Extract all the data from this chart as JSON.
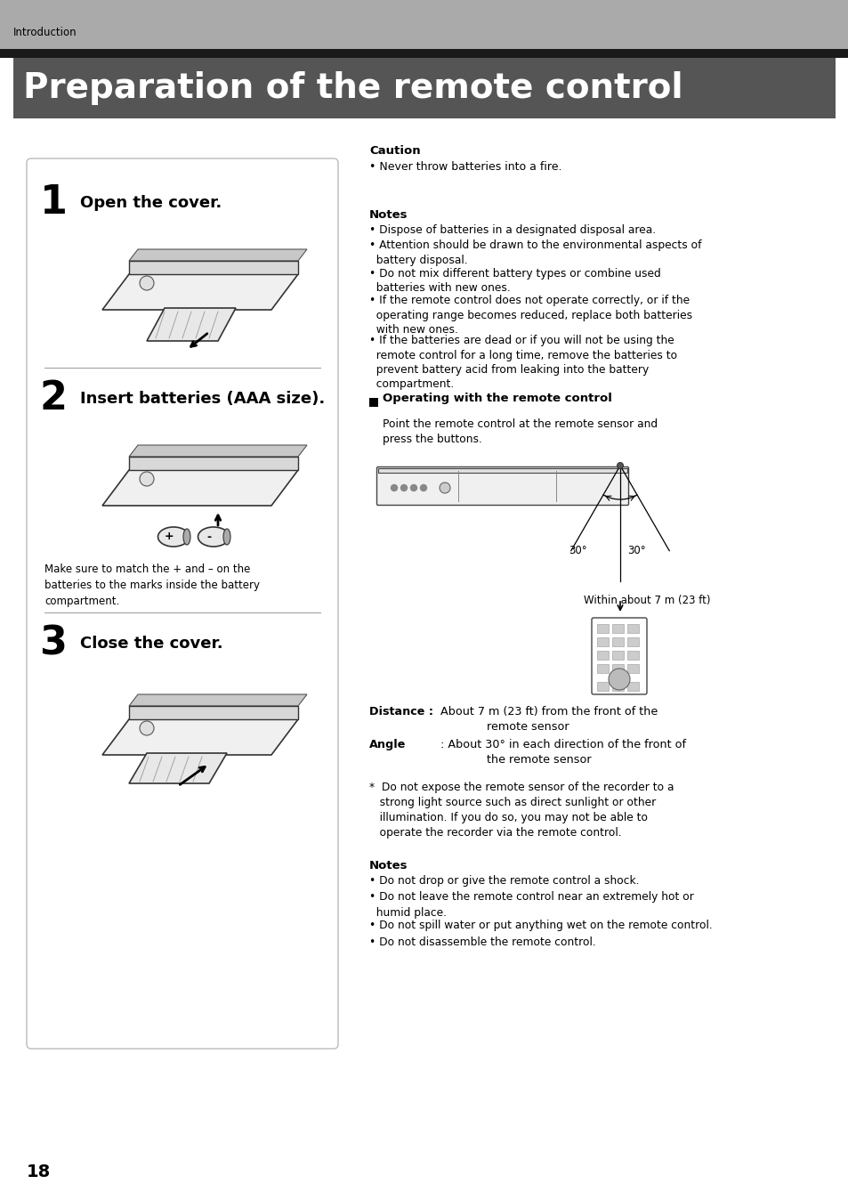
{
  "page_title": "Preparation of the remote control",
  "section_header": "Introduction",
  "bg_color": "#ffffff",
  "header_bar_color": "#aaaaaa",
  "title_bar_color": "#555555",
  "title_text_color": "#ffffff",
  "header_text_color": "#000000",
  "step1_title": "Open the cover.",
  "step2_title": "Insert batteries (AAA size).",
  "step3_title": "Close the cover.",
  "step_note": "Make sure to match the + and – on the\nbatteries to the marks inside the battery\ncompartment.",
  "caution_title": "Caution",
  "caution_bullet": "Never throw batteries into a fire.",
  "notes_title": "Notes",
  "notes_bullets": [
    "Dispose of batteries in a designated disposal area.",
    "Attention should be drawn to the environmental aspects of\n  battery disposal.",
    "Do not mix different battery types or combine used\n  batteries with new ones.",
    "If the remote control does not operate correctly, or if the\n  operating range becomes reduced, replace both batteries\n  with new ones.",
    "If the batteries are dead or if you will not be using the\n  remote control for a long time, remove the batteries to\n  prevent battery acid from leaking into the battery\n  compartment."
  ],
  "operating_title": "Operating with the remote control",
  "operating_text": "Point the remote control at the remote sensor and\npress the buttons.",
  "within_text": "Within about 7 m (23 ft)",
  "distance_label": "Distance :",
  "distance_text": "About 7 m (23 ft) from the front of the\n             remote sensor",
  "angle_label": "Angle",
  "angle_text": ": About 30° in each direction of the front of\n             the remote sensor",
  "footnote": "*  Do not expose the remote sensor of the recorder to a\n   strong light source such as direct sunlight or other\n   illumination. If you do so, you may not be able to\n   operate the recorder via the remote control.",
  "notes2_title": "Notes",
  "notes2_bullets": [
    "Do not drop or give the remote control a shock.",
    "Do not leave the remote control near an extremely hot or\n  humid place.",
    "Do not spill water or put anything wet on the remote control.",
    "Do not disassemble the remote control."
  ],
  "page_number": "18"
}
